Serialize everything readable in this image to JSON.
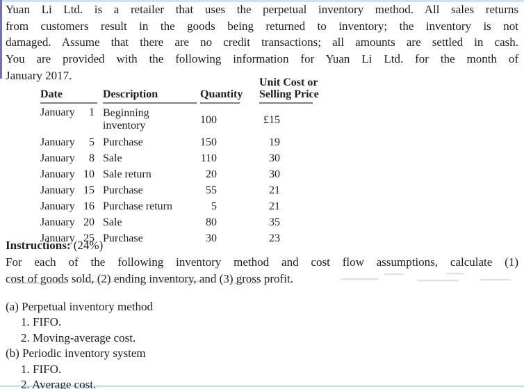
{
  "intro": {
    "lines": [
      "Yuan Li Ltd. is a retailer that uses the perpetual inventory method. All sales returns",
      "from customers result in the goods being returned to inventory; the inventory is not",
      "damaged. Assume that there are no credit transactions; all amounts are settled in cash.",
      "You are provided with the following information for Yuan Li Ltd. for the month of",
      "January 2017."
    ]
  },
  "table": {
    "headers": {
      "date": "Date",
      "description": "Description",
      "quantity": "Quantity",
      "unit_cost_line1": "Unit Cost or",
      "unit_cost_line2": "Selling Price"
    },
    "rows": [
      {
        "month": "January",
        "day": "1",
        "description": "Beginning inventory",
        "quantity": "100",
        "price": "£15"
      },
      {
        "month": "January",
        "day": "5",
        "description": "Purchase",
        "quantity": "150",
        "price": "19"
      },
      {
        "month": "January",
        "day": "8",
        "description": "Sale",
        "quantity": "110",
        "price": "30"
      },
      {
        "month": "January",
        "day": "10",
        "description": "Sale return",
        "quantity": "20",
        "price": "30"
      },
      {
        "month": "January",
        "day": "15",
        "description": "Purchase",
        "quantity": "55",
        "price": "21"
      },
      {
        "month": "January",
        "day": "16",
        "description": "Purchase return",
        "quantity": "5",
        "price": "21"
      },
      {
        "month": "January",
        "day": "20",
        "description": "Sale",
        "quantity": "80",
        "price": "35"
      },
      {
        "month": "January",
        "day": "25",
        "description": "Purchase",
        "quantity": "30",
        "price": "23"
      }
    ]
  },
  "instructions": {
    "label": "Instructions:",
    "weight": " (24%)",
    "lines": [
      "For each of the following inventory method and cost flow assumptions, calculate (1)",
      "cost of goods sold, (2) ending inventory, and (3) gross profit."
    ]
  },
  "requirements": [
    "(a) Perpetual inventory method",
    "1. FIFO.",
    "2. Moving-average cost.",
    "(b) Periodic inventory system",
    "1. FIFO.",
    "2. Average cost."
  ],
  "colors": {
    "top_edge": "#cfe2f0",
    "left_edge": "#6d72b6",
    "bottom_edge": "#bedceb",
    "text": "#1d1d1d",
    "header_rule": "#7e7e7e"
  }
}
